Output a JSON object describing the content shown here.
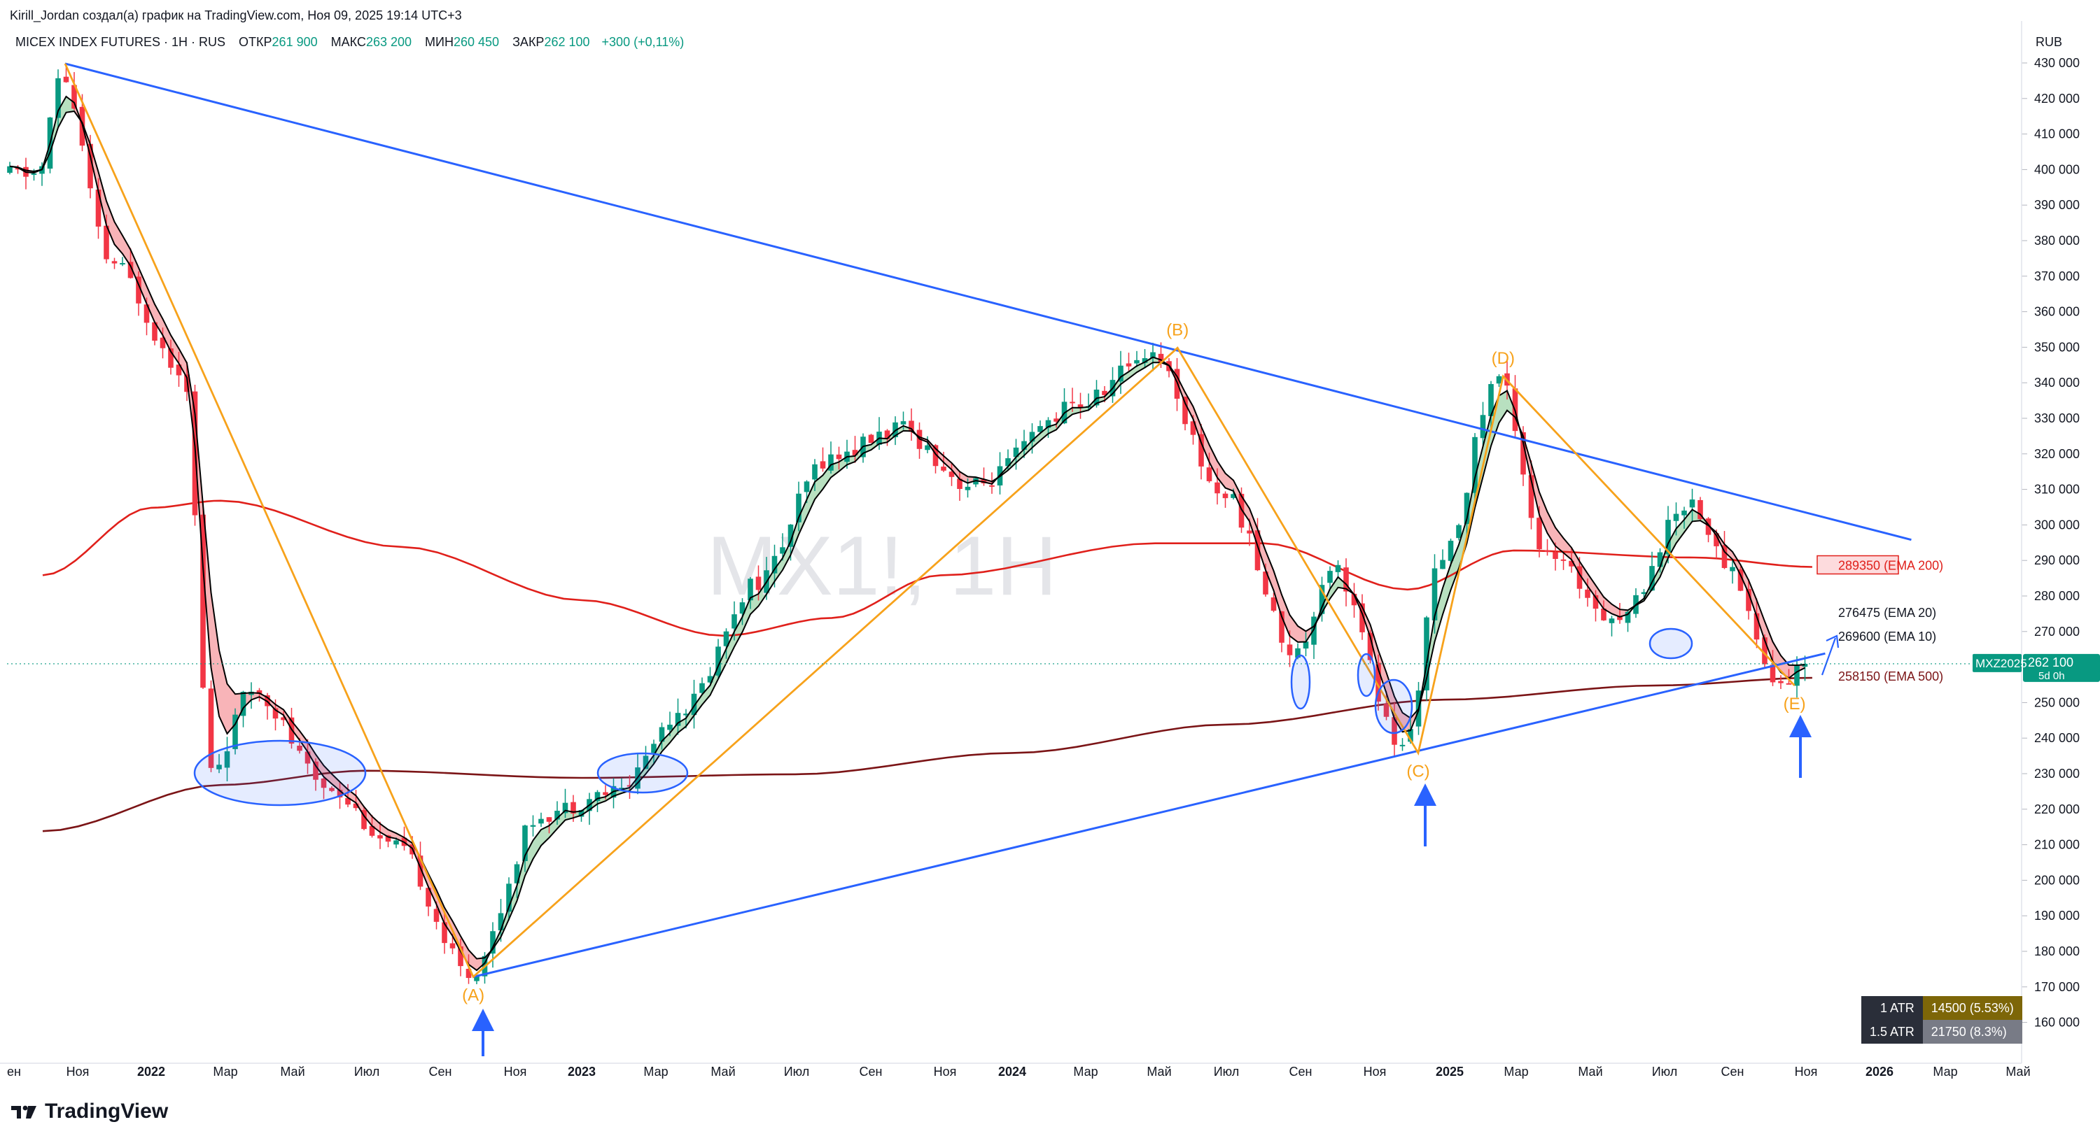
{
  "header": {
    "author_line": "Kirill_Jordan создал(а) график на TradingView.com, Ноя 09, 2025 19:14 UTC+3",
    "symbol_full": "MICEX INDEX FUTURES · 1H · RUS",
    "ohlc": [
      {
        "label": "ОТКР",
        "value": "261 900"
      },
      {
        "label": "МАКС",
        "value": "263 200"
      },
      {
        "label": "МИН",
        "value": "260 450"
      },
      {
        "label": "ЗАКР",
        "value": "262 100"
      }
    ],
    "change": "+300 (+0,11%)"
  },
  "watermark": "MX1!, 1H",
  "currency": "RUB",
  "colors": {
    "up": "#089981",
    "down": "#f23645",
    "trendline": "#2962ff",
    "zigzag": "#f7a21b",
    "ema200": "#e0201b",
    "ema500": "#7b1416",
    "ribbon_bull": "#b8e0c0",
    "ribbon_bear": "#f8b4b8"
  },
  "price_axis": {
    "ticks": [
      "430 000",
      "420 000",
      "410 000",
      "400 000",
      "390 000",
      "380 000",
      "370 000",
      "360 000",
      "350 000",
      "340 000",
      "330 000",
      "320 000",
      "310 000",
      "300 000",
      "290 000",
      "280 000",
      "270 000",
      "260 000",
      "250 000",
      "240 000",
      "230 000",
      "220 000",
      "210 000",
      "200 000",
      "190 000",
      "180 000",
      "170 000",
      "160 000"
    ],
    "current_label": "262 100",
    "current_countdown": "5d 0h",
    "contract_label": "MXZ2025"
  },
  "time_axis": {
    "labels": [
      {
        "t": "ен",
        "bold": false
      },
      {
        "t": "Ноя",
        "bold": false
      },
      {
        "t": "2022",
        "bold": true
      },
      {
        "t": "Мар",
        "bold": false
      },
      {
        "t": "Май",
        "bold": false
      },
      {
        "t": "Июл",
        "bold": false
      },
      {
        "t": "Сен",
        "bold": false
      },
      {
        "t": "Ноя",
        "bold": false
      },
      {
        "t": "2023",
        "bold": true
      },
      {
        "t": "Мар",
        "bold": false
      },
      {
        "t": "Май",
        "bold": false
      },
      {
        "t": "Июл",
        "bold": false
      },
      {
        "t": "Сен",
        "bold": false
      },
      {
        "t": "Ноя",
        "bold": false
      },
      {
        "t": "2024",
        "bold": true
      },
      {
        "t": "Мар",
        "bold": false
      },
      {
        "t": "Май",
        "bold": false
      },
      {
        "t": "Июл",
        "bold": false
      },
      {
        "t": "Сен",
        "bold": false
      },
      {
        "t": "Ноя",
        "bold": false
      },
      {
        "t": "2025",
        "bold": true
      },
      {
        "t": "Мар",
        "bold": false
      },
      {
        "t": "Май",
        "bold": false
      },
      {
        "t": "Июл",
        "bold": false
      },
      {
        "t": "Сен",
        "bold": false
      },
      {
        "t": "Ноя",
        "bold": false
      },
      {
        "t": "2026",
        "bold": true
      },
      {
        "t": "Мар",
        "bold": false
      },
      {
        "t": "Май",
        "bold": false
      }
    ]
  },
  "wave_labels": [
    "(A)",
    "(B)",
    "(C)",
    "(D)",
    "(E)"
  ],
  "indicator_labels": [
    {
      "text": "289350 (EMA 200)",
      "color": "#e0201b"
    },
    {
      "text": "276475 (EMA 20)",
      "color": "#131722"
    },
    {
      "text": "269600 (EMA 10)",
      "color": "#131722"
    },
    {
      "text": "258150 (EMA 500)",
      "color": "#7b1416"
    }
  ],
  "atr_table": [
    {
      "label": "1 ATR",
      "value": "14500 (5.53%)",
      "color": "#7d6608"
    },
    {
      "label": "1.5 ATR",
      "value": "21750 (8.3%)",
      "color": "#787b86"
    }
  ],
  "brand": "TradingView",
  "chart_data": {
    "type": "candlestick",
    "title": "MICEX INDEX FUTURES · 1H · RUS",
    "ylabel": "RUB",
    "ylim": [
      152000,
      436000
    ],
    "grid": false,
    "legend": "none",
    "anchors": [
      {
        "date": "2021-10",
        "price": 400000
      },
      {
        "date": "2021-10-20",
        "price": 428000
      },
      {
        "date": "2021-12",
        "price": 375000
      },
      {
        "date": "2022-02",
        "price": 345000
      },
      {
        "date": "2022-02-24",
        "price": 232000
      },
      {
        "date": "2022-04",
        "price": 255000
      },
      {
        "date": "2022-06",
        "price": 228000
      },
      {
        "date": "2022-08",
        "price": 210000
      },
      {
        "date": "2022-10",
        "price": 175000
      },
      {
        "date": "2022-12",
        "price": 220000
      },
      {
        "date": "2023-02",
        "price": 226000
      },
      {
        "date": "2023-04",
        "price": 250000
      },
      {
        "date": "2023-06",
        "price": 285000
      },
      {
        "date": "2023-08",
        "price": 320000
      },
      {
        "date": "2023-10",
        "price": 328000
      },
      {
        "date": "2023-12",
        "price": 312000
      },
      {
        "date": "2024-03",
        "price": 335000
      },
      {
        "date": "2024-05",
        "price": 350000
      },
      {
        "date": "2024-07",
        "price": 310000
      },
      {
        "date": "2024-09",
        "price": 265000
      },
      {
        "date": "2024-10",
        "price": 290000
      },
      {
        "date": "2024-12",
        "price": 238000
      },
      {
        "date": "2025-01",
        "price": 290000
      },
      {
        "date": "2025-02-20",
        "price": 343000
      },
      {
        "date": "2025-04",
        "price": 292000
      },
      {
        "date": "2025-06",
        "price": 275000
      },
      {
        "date": "2025-08",
        "price": 308000
      },
      {
        "date": "2025-09",
        "price": 290000
      },
      {
        "date": "2025-10-15",
        "price": 256000
      },
      {
        "date": "2025-11-09",
        "price": 262100
      }
    ],
    "ema200_path": [
      {
        "date": "2021-10",
        "price": 287000
      },
      {
        "date": "2022-01",
        "price": 306000
      },
      {
        "date": "2022-03",
        "price": 308000
      },
      {
        "date": "2022-08",
        "price": 295000
      },
      {
        "date": "2023-01",
        "price": 280000
      },
      {
        "date": "2023-05",
        "price": 270000
      },
      {
        "date": "2023-08",
        "price": 275000
      },
      {
        "date": "2023-11",
        "price": 287000
      },
      {
        "date": "2024-05",
        "price": 296000
      },
      {
        "date": "2024-08",
        "price": 296000
      },
      {
        "date": "2024-12",
        "price": 283000
      },
      {
        "date": "2025-03",
        "price": 294000
      },
      {
        "date": "2025-08",
        "price": 292000
      },
      {
        "date": "2025-11-09",
        "price": 289350
      }
    ],
    "ema500_path": [
      {
        "date": "2021-10",
        "price": 215000
      },
      {
        "date": "2022-03",
        "price": 228000
      },
      {
        "date": "2022-07",
        "price": 232000
      },
      {
        "date": "2023-01",
        "price": 230000
      },
      {
        "date": "2023-07",
        "price": 231000
      },
      {
        "date": "2024-01",
        "price": 237000
      },
      {
        "date": "2024-07",
        "price": 245000
      },
      {
        "date": "2025-01",
        "price": 252000
      },
      {
        "date": "2025-07",
        "price": 256000
      },
      {
        "date": "2025-11-09",
        "price": 258150
      }
    ],
    "trendlines": [
      {
        "name": "upper",
        "from": {
          "date": "2021-10-20",
          "price": 431000
        },
        "to": {
          "date": "2026-02",
          "price": 297000
        }
      },
      {
        "name": "lower",
        "from": {
          "date": "2022-10",
          "price": 174000
        },
        "to": {
          "date": "2025-11-20",
          "price": 265000
        }
      }
    ],
    "zigzag": [
      {
        "date": "2021-10-20",
        "price": 431000
      },
      {
        "date": "2022-10",
        "price": 174000,
        "label": "(A)"
      },
      {
        "date": "2024-05-20",
        "price": 351000,
        "label": "(B)"
      },
      {
        "date": "2024-12-10",
        "price": 237000,
        "label": "(C)"
      },
      {
        "date": "2025-02-20",
        "price": 343000,
        "label": "(D)"
      },
      {
        "date": "2025-10-25",
        "price": 256000,
        "label": "(E)"
      }
    ]
  }
}
